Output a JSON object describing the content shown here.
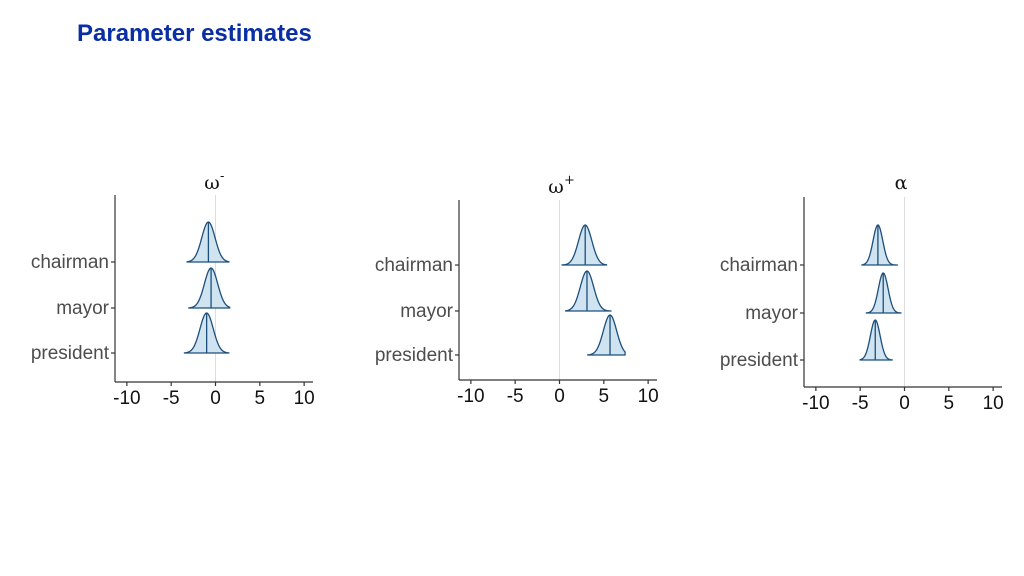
{
  "slide": {
    "title": "Parameter estimates"
  },
  "chart_data": [
    {
      "type": "ridgeline",
      "title_symbol": "ω",
      "title_superscript": "-",
      "categories": [
        "chairman",
        "mayor",
        "president"
      ],
      "distributions": [
        {
          "category": "chairman",
          "median": -0.8,
          "sd": 0.75,
          "min": -3.2,
          "max": 1.5
        },
        {
          "category": "mayor",
          "median": -0.5,
          "sd": 0.75,
          "min": -3.0,
          "max": 1.6
        },
        {
          "category": "president",
          "median": -1.0,
          "sd": 0.75,
          "min": -3.5,
          "max": 1.5
        }
      ],
      "xticks": [
        -10,
        -5,
        0,
        5,
        10
      ],
      "xlim": [
        -11,
        11
      ],
      "reference_line": 0
    },
    {
      "type": "ridgeline",
      "title_symbol": "ω",
      "title_superscript": "+",
      "categories": [
        "chairman",
        "mayor",
        "president"
      ],
      "distributions": [
        {
          "category": "chairman",
          "median": 2.9,
          "sd": 0.75,
          "min": 0.3,
          "max": 5.3
        },
        {
          "category": "mayor",
          "median": 3.1,
          "sd": 0.75,
          "min": 0.7,
          "max": 5.8
        },
        {
          "category": "president",
          "median": 5.7,
          "sd": 0.75,
          "min": 3.2,
          "max": 7.4
        }
      ],
      "xticks": [
        -10,
        -5,
        0,
        5,
        10
      ],
      "xlim": [
        -11,
        11
      ],
      "reference_line": 0
    },
    {
      "type": "ridgeline",
      "title_symbol": "α",
      "title_superscript": "",
      "categories": [
        "chairman",
        "mayor",
        "president"
      ],
      "distributions": [
        {
          "category": "chairman",
          "median": -3.0,
          "sd": 0.55,
          "min": -4.8,
          "max": -0.8
        },
        {
          "category": "mayor",
          "median": -2.4,
          "sd": 0.55,
          "min": -4.3,
          "max": -0.4
        },
        {
          "category": "president",
          "median": -3.3,
          "sd": 0.55,
          "min": -5.0,
          "max": -1.4
        }
      ],
      "xticks": [
        -10,
        -5,
        0,
        5,
        10
      ],
      "xlim": [
        -11,
        11
      ],
      "reference_line": 0
    }
  ],
  "colors": {
    "fill": "#cfe3f0",
    "stroke": "#1c4f7c",
    "ref_line": "#dddddd",
    "axis": "#333333"
  }
}
